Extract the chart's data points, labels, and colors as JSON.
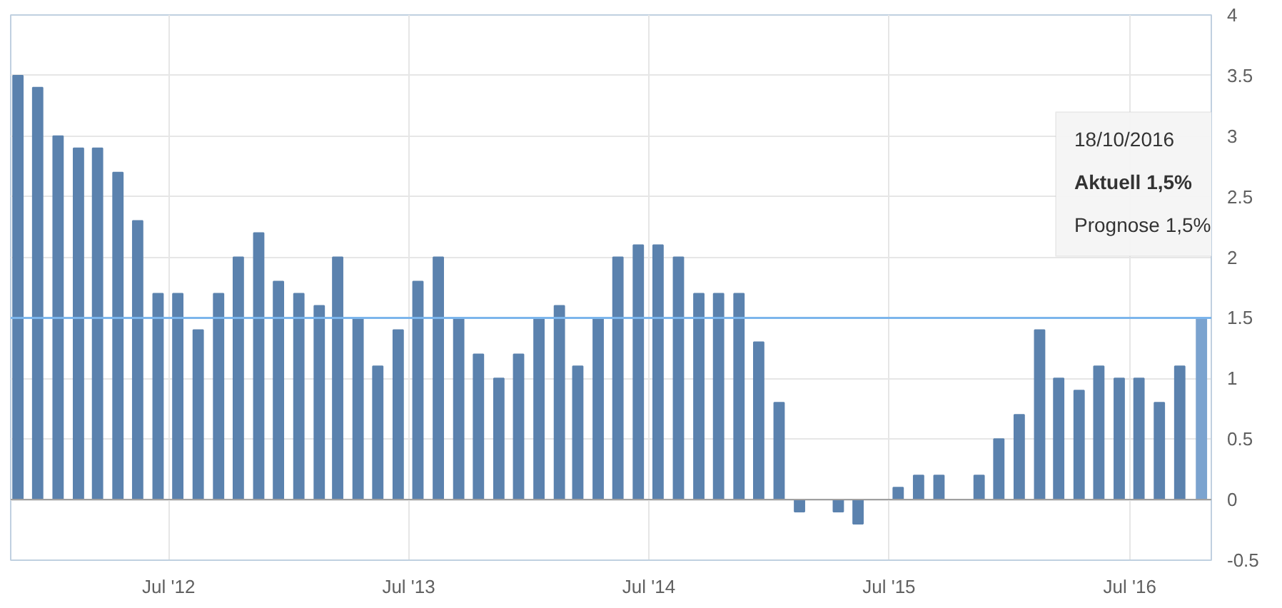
{
  "chart_data": {
    "type": "bar",
    "x": [
      "2011-11-15",
      "2011-12-15",
      "2012-01-15",
      "2012-02-15",
      "2012-03-15",
      "2012-04-15",
      "2012-05-15",
      "2012-06-15",
      "2012-07-15",
      "2012-08-15",
      "2012-09-15",
      "2012-10-15",
      "2012-11-15",
      "2012-12-15",
      "2013-01-15",
      "2013-02-15",
      "2013-03-15",
      "2013-04-15",
      "2013-05-15",
      "2013-06-15",
      "2013-07-15",
      "2013-08-15",
      "2013-09-15",
      "2013-10-15",
      "2013-11-15",
      "2013-12-15",
      "2014-01-15",
      "2014-02-15",
      "2014-03-15",
      "2014-04-15",
      "2014-05-15",
      "2014-06-15",
      "2014-07-15",
      "2014-08-15",
      "2014-09-15",
      "2014-10-15",
      "2014-11-15",
      "2014-12-15",
      "2015-01-15",
      "2015-02-15",
      "2015-03-15",
      "2015-04-15",
      "2015-05-15",
      "2015-06-15",
      "2015-07-15",
      "2015-08-15",
      "2015-09-15",
      "2015-10-15",
      "2015-11-15",
      "2015-12-15",
      "2016-01-15",
      "2016-02-15",
      "2016-03-15",
      "2016-04-15",
      "2016-05-15",
      "2016-06-15",
      "2016-07-15",
      "2016-08-15",
      "2016-09-15",
      "2016-10-18"
    ],
    "values": [
      3.5,
      3.4,
      3.0,
      2.9,
      2.9,
      2.7,
      2.3,
      1.7,
      1.7,
      1.4,
      1.7,
      2.0,
      2.2,
      1.8,
      1.7,
      1.6,
      2.0,
      1.5,
      1.1,
      1.4,
      1.8,
      2.0,
      1.5,
      1.2,
      1.0,
      1.2,
      1.5,
      1.6,
      1.1,
      1.5,
      2.0,
      2.1,
      2.1,
      2.0,
      1.7,
      1.7,
      1.7,
      1.3,
      0.8,
      -0.1,
      0.0,
      -0.1,
      -0.2,
      0.0,
      0.1,
      0.2,
      0.2,
      0.0,
      0.2,
      0.5,
      0.7,
      1.4,
      1.0,
      0.9,
      1.1,
      1.0,
      1.0,
      0.8,
      1.1,
      1.5
    ],
    "colors": [
      "#5b82ae",
      "#5b82ae",
      "#5b82ae",
      "#5b82ae",
      "#5b82ae",
      "#5b82ae",
      "#5b82ae",
      "#5b82ae",
      "#5b82ae",
      "#5b82ae",
      "#5b82ae",
      "#5b82ae",
      "#5b82ae",
      "#5b82ae",
      "#5b82ae",
      "#5b82ae",
      "#5b82ae",
      "#5b82ae",
      "#5b82ae",
      "#5b82ae",
      "#5b82ae",
      "#5b82ae",
      "#5b82ae",
      "#5b82ae",
      "#5b82ae",
      "#5b82ae",
      "#5b82ae",
      "#5b82ae",
      "#5b82ae",
      "#5b82ae",
      "#5b82ae",
      "#5b82ae",
      "#5b82ae",
      "#5b82ae",
      "#5b82ae",
      "#5b82ae",
      "#5b82ae",
      "#5b82ae",
      "#5b82ae",
      "#5b82ae",
      "#5b82ae",
      "#5b82ae",
      "#5b82ae",
      "#5b82ae",
      "#5b82ae",
      "#5b82ae",
      "#5b82ae",
      "#5b82ae",
      "#5b82ae",
      "#5b82ae",
      "#5b82ae",
      "#5b82ae",
      "#5b82ae",
      "#5b82ae",
      "#5b82ae",
      "#5b82ae",
      "#5b82ae",
      "#5b82ae",
      "#5b82ae",
      "#7ba3cf"
    ],
    "xlim": [
      "2011-11-04",
      "2016-11-02"
    ],
    "xticks": [
      {
        "value": "2012-07-01",
        "label": "Jul '12"
      },
      {
        "value": "2013-07-01",
        "label": "Jul '13"
      },
      {
        "value": "2014-07-01",
        "label": "Jul '14"
      },
      {
        "value": "2015-07-01",
        "label": "Jul '15"
      },
      {
        "value": "2016-07-01",
        "label": "Jul '16"
      }
    ],
    "ylim": [
      -0.5,
      4
    ],
    "yticks": [
      -0.5,
      0,
      0.5,
      1,
      1.5,
      2,
      2.5,
      3,
      3.5,
      4
    ],
    "grid": true,
    "ref_lines": [
      {
        "axis": "y",
        "value": 1.5,
        "color": "#7cb5ec"
      }
    ],
    "annotations": [
      "18/10/2016",
      "Aktuell 1,5%",
      "Prognose 1,5%"
    ]
  }
}
